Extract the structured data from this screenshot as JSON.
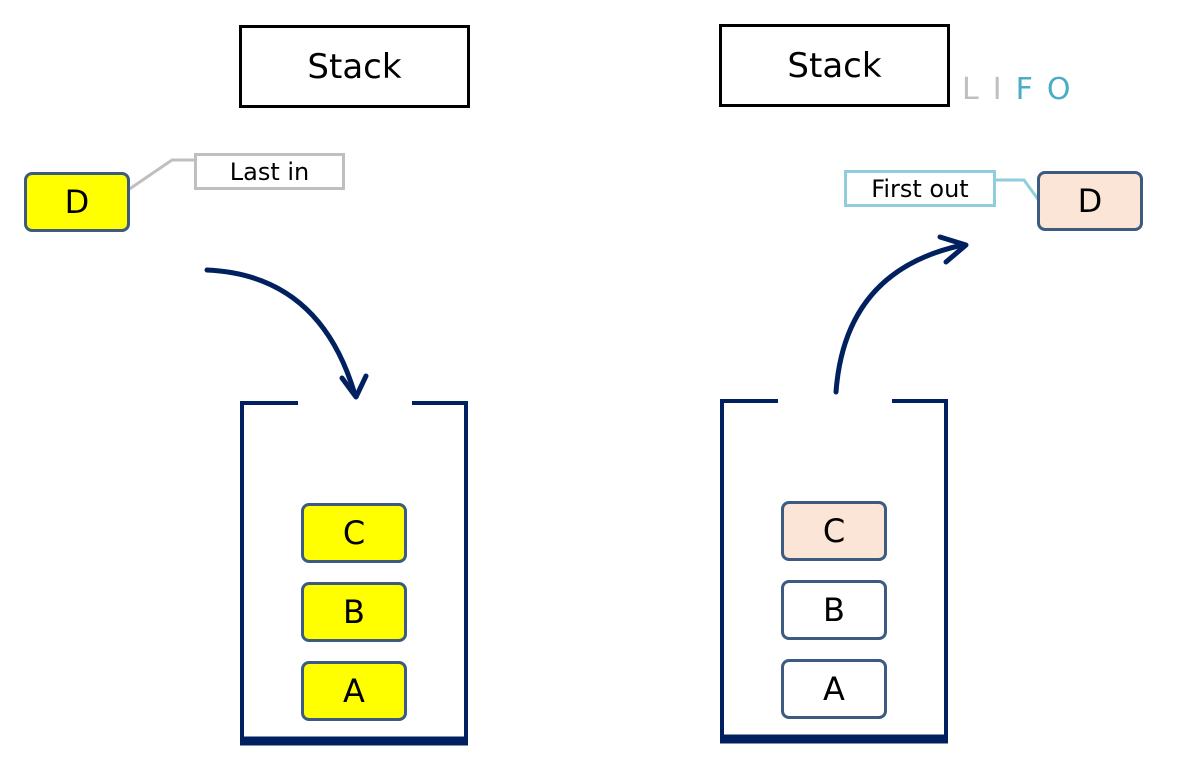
{
  "left_panel": {
    "title": "Stack",
    "incoming_node": "D",
    "callout": "Last in",
    "stack_items": [
      "C",
      "B",
      "A"
    ]
  },
  "right_panel": {
    "title": "Stack",
    "acronym": [
      "L",
      "I",
      "F",
      "O"
    ],
    "outgoing_node": "D",
    "callout": "First out",
    "stack_items": [
      "C",
      "B",
      "A"
    ]
  },
  "colors": {
    "pushed_fill": "#ffff00",
    "popped_fill": "#fbe5d6",
    "container_stroke": "#002060",
    "node_border": "#3d5a80",
    "lifo_gray": "#bfbfbf",
    "lifo_teal": "#4bacc6"
  }
}
